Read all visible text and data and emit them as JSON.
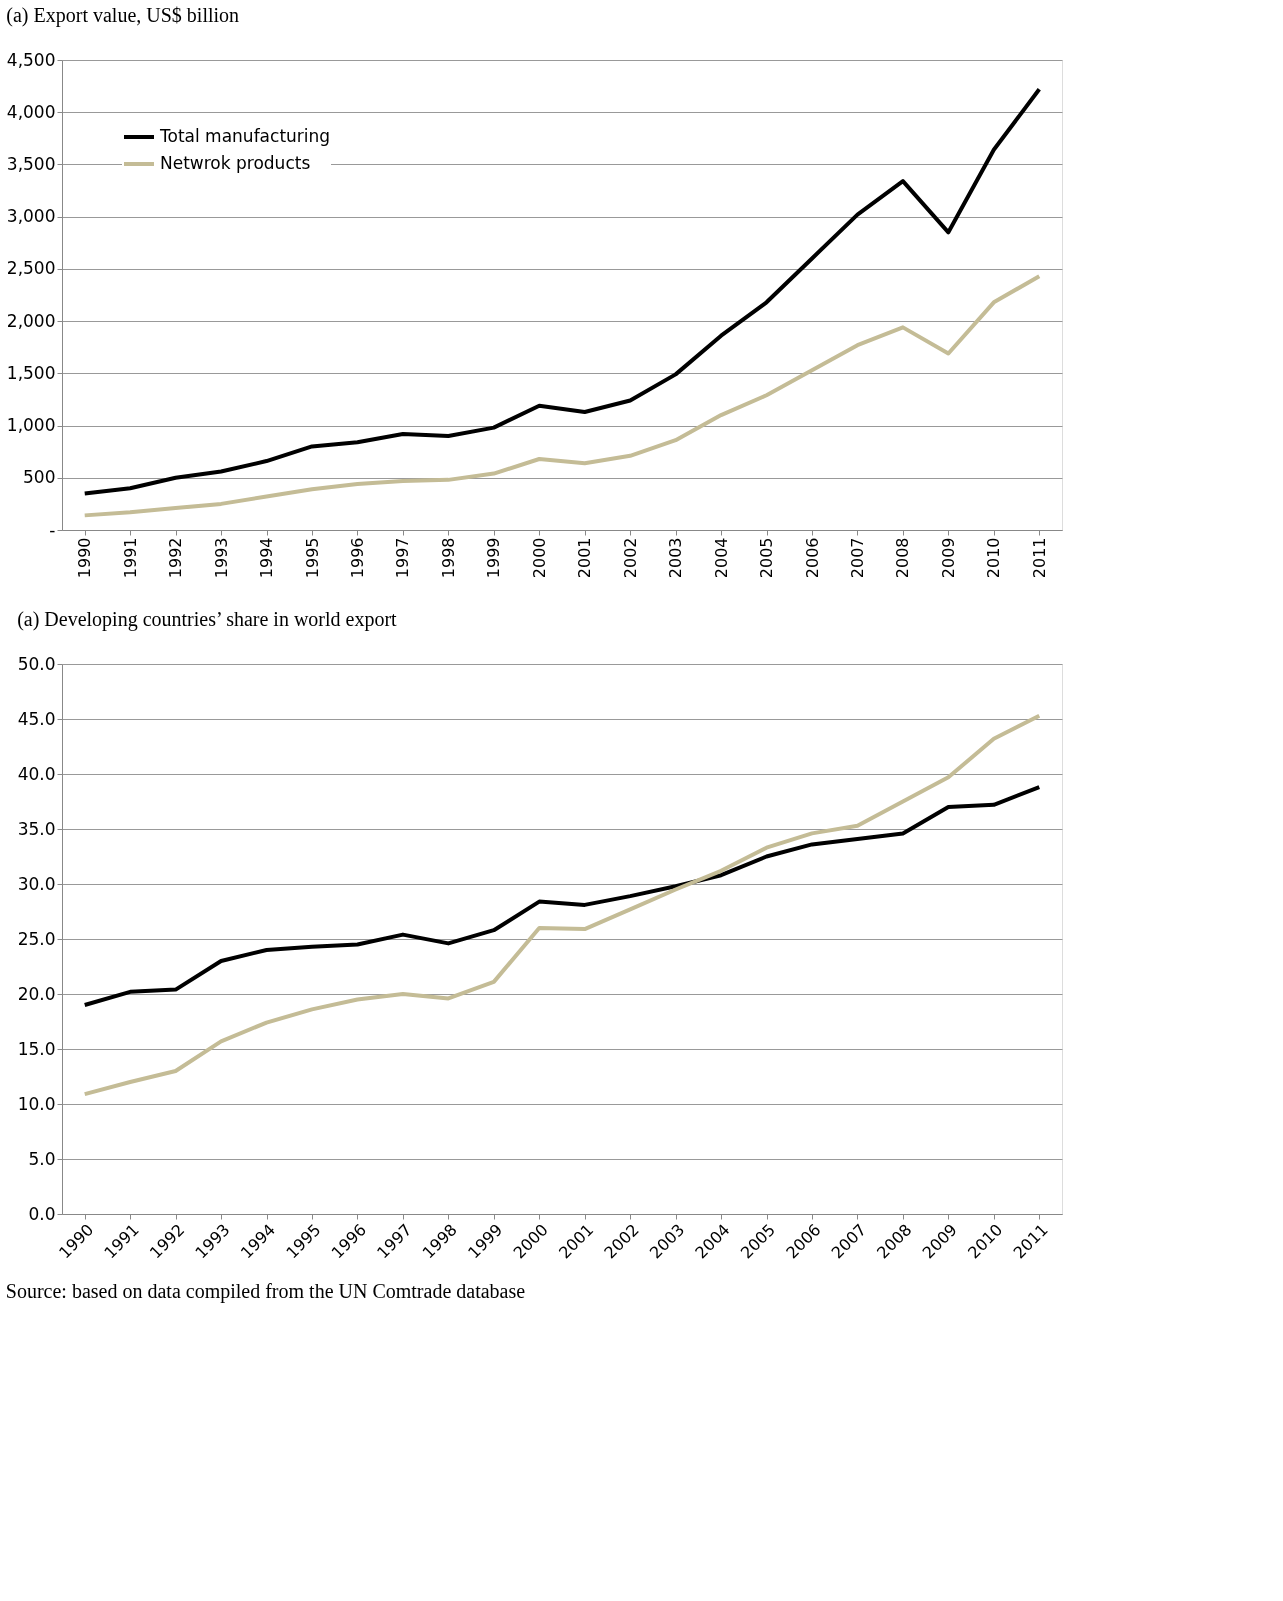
{
  "chart_data": [
    {
      "type": "line",
      "title": "(a)    Export value, US$ billion",
      "categories": [
        "1990",
        "1991",
        "1992",
        "1993",
        "1994",
        "1995",
        "1996",
        "1997",
        "1998",
        "1999",
        "2000",
        "2001",
        "2002",
        "2003",
        "2004",
        "2005",
        "2006",
        "2007",
        "2008",
        "2009",
        "2010",
        "2011"
      ],
      "series": [
        {
          "name": "Total manufacturing",
          "color": "#000000",
          "values": [
            350,
            400,
            500,
            560,
            660,
            800,
            840,
            920,
            900,
            980,
            1190,
            1130,
            1240,
            1490,
            1860,
            2180,
            2600,
            3020,
            3340,
            2850,
            3640,
            4220
          ]
        },
        {
          "name": "Netwrok products",
          "color": "#c4bc96",
          "values": [
            140,
            170,
            210,
            250,
            320,
            390,
            440,
            470,
            480,
            540,
            680,
            640,
            710,
            860,
            1100,
            1290,
            1530,
            1770,
            1940,
            1690,
            2180,
            2430
          ]
        }
      ],
      "ylim": [
        0,
        4500
      ],
      "yticks": [
        {
          "value": 0,
          "label": "-"
        },
        {
          "value": 500,
          "label": "500"
        },
        {
          "value": 1000,
          "label": "1,000"
        },
        {
          "value": 1500,
          "label": "1,500"
        },
        {
          "value": 2000,
          "label": "2,000"
        },
        {
          "value": 2500,
          "label": "2,500"
        },
        {
          "value": 3000,
          "label": "3,000"
        },
        {
          "value": 3500,
          "label": "3,500"
        },
        {
          "value": 4000,
          "label": "4,000"
        },
        {
          "value": 4500,
          "label": "4,500"
        }
      ],
      "grid": "y",
      "legend": "top left",
      "marker": "none",
      "line_style": "solid"
    },
    {
      "type": "line",
      "title": "(a)    Developing countries’  share in  world export",
      "categories": [
        "1990",
        "1991",
        "1992",
        "1993",
        "1994",
        "1995",
        "1996",
        "1997",
        "1998",
        "1999",
        "2000",
        "2001",
        "2002",
        "2003",
        "2004",
        "2005",
        "2006",
        "2007",
        "2008",
        "2009",
        "2010",
        "2011"
      ],
      "series": [
        {
          "name": "Total manufacturing",
          "color": "#000000",
          "values": [
            19.0,
            20.2,
            20.4,
            23.0,
            24.0,
            24.3,
            24.5,
            25.4,
            24.6,
            25.8,
            28.4,
            28.1,
            28.9,
            29.8,
            30.8,
            32.5,
            33.6,
            34.1,
            34.6,
            37.0,
            37.2,
            38.8
          ]
        },
        {
          "name": "Netwrok products",
          "color": "#c4bc96",
          "values": [
            10.9,
            12.0,
            13.0,
            15.7,
            17.4,
            18.6,
            19.5,
            20.0,
            19.6,
            21.1,
            26.0,
            25.9,
            27.7,
            29.5,
            31.2,
            33.3,
            34.6,
            35.3,
            37.5,
            39.7,
            43.2,
            45.3
          ]
        }
      ],
      "ylim": [
        0,
        50
      ],
      "yticks": [
        {
          "value": 0,
          "label": "0.0"
        },
        {
          "value": 5,
          "label": "5.0"
        },
        {
          "value": 10,
          "label": "10.0"
        },
        {
          "value": 15,
          "label": "15.0"
        },
        {
          "value": 20,
          "label": "20.0"
        },
        {
          "value": 25,
          "label": "25.0"
        },
        {
          "value": 30,
          "label": "30.0"
        },
        {
          "value": 35,
          "label": "35.0"
        },
        {
          "value": 40,
          "label": "40.0"
        },
        {
          "value": 45,
          "label": "45.0"
        },
        {
          "value": 50,
          "label": "50.0"
        }
      ],
      "grid": "y",
      "legend": "top left",
      "marker": "none",
      "line_style": "solid",
      "annotations": [
        "Source: based on data compiled from the UN Comtrade database"
      ]
    }
  ]
}
